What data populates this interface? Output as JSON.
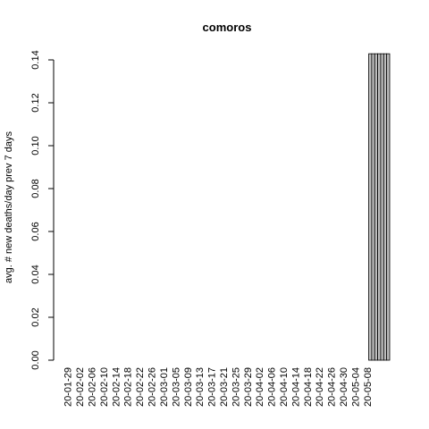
{
  "chart_data": {
    "type": "bar",
    "title": "comoros",
    "xlabel": "",
    "ylabel": "avg. # new deaths/day prev  7  days",
    "ylim": [
      0,
      0.14
    ],
    "yticks": [
      "0.00",
      "0.02",
      "0.04",
      "0.06",
      "0.08",
      "0.10",
      "0.12",
      "0.14"
    ],
    "ytick_values": [
      0,
      0.02,
      0.04,
      0.06,
      0.08,
      0.1,
      0.12,
      0.14
    ],
    "xtick_labels": [
      "20-01-29",
      "20-02-02",
      "20-02-06",
      "20-02-10",
      "20-02-14",
      "20-02-18",
      "20-02-22",
      "20-02-26",
      "20-03-01",
      "20-03-05",
      "20-03-09",
      "20-03-13",
      "20-03-17",
      "20-03-21",
      "20-03-25",
      "20-03-29",
      "20-04-02",
      "20-04-06",
      "20-04-10",
      "20-04-14",
      "20-04-18",
      "20-04-22",
      "20-04-26",
      "20-04-30",
      "20-05-04",
      "20-05-08"
    ],
    "start_date": "2020-01-29",
    "values": [
      0,
      0,
      0,
      0,
      0,
      0,
      0,
      0,
      0,
      0,
      0,
      0,
      0,
      0,
      0,
      0,
      0,
      0,
      0,
      0,
      0,
      0,
      0,
      0,
      0,
      0,
      0,
      0,
      0,
      0,
      0,
      0,
      0,
      0,
      0,
      0,
      0,
      0,
      0,
      0,
      0,
      0,
      0,
      0,
      0,
      0,
      0,
      0,
      0,
      0,
      0,
      0,
      0,
      0,
      0,
      0,
      0,
      0,
      0,
      0,
      0,
      0,
      0,
      0,
      0,
      0,
      0,
      0,
      0,
      0,
      0,
      0,
      0,
      0,
      0,
      0,
      0,
      0,
      0,
      0,
      0,
      0,
      0,
      0,
      0,
      0,
      0,
      0,
      0,
      0,
      0,
      0,
      0,
      0,
      0,
      0,
      0,
      0,
      0,
      0,
      0,
      0.142857,
      0.142857,
      0.142857,
      0.142857,
      0.142857,
      0.142857,
      0.142857
    ],
    "bar_fill": "#bebebe",
    "bar_stroke": "#000000"
  }
}
